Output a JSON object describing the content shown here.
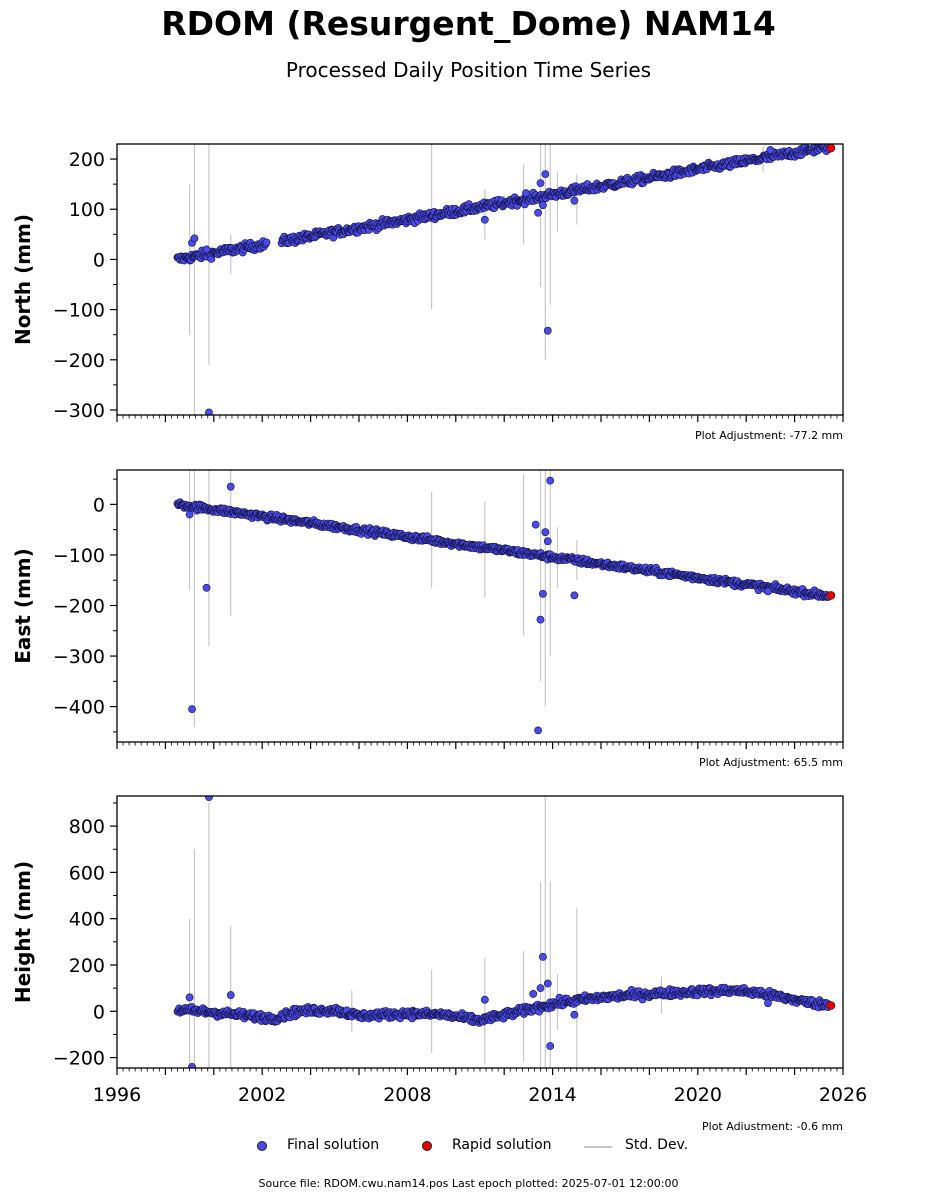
{
  "title": "RDOM (Resurgent_Dome) NAM14",
  "subtitle": "Processed Daily Position Time Series",
  "legend": {
    "final": "Final solution",
    "rapid": "Rapid solution",
    "std": "Std. Dev."
  },
  "colors": {
    "final": "#4b4bea",
    "rapid": "#e60000",
    "std": "#c8c8c8"
  },
  "footer": "Source file: RDOM.cwu.nam14.pos  Last epoch plotted: 2025-07-01 12:00:00",
  "chart_data": [
    {
      "type": "scatter",
      "ylabel": "North (mm)",
      "adjustment": "Plot Adjustment: -77.2 mm",
      "xlim": [
        1996,
        2026
      ],
      "ylim": [
        -310,
        230
      ],
      "yticks": [
        -300,
        -200,
        -100,
        0,
        100,
        200
      ],
      "yticklabels": [
        "−300",
        "−200",
        "−100",
        "0",
        "100",
        "200"
      ],
      "trend": [
        [
          1998.5,
          0
        ],
        [
          2025.5,
          225
        ]
      ],
      "scatter_noise": 4,
      "outliers": [
        [
          1999.1,
          33
        ],
        [
          1999.2,
          42
        ],
        [
          1999.7,
          20
        ],
        [
          1999.8,
          -305
        ],
        [
          2011.2,
          79
        ],
        [
          2012.9,
          132
        ],
        [
          2013.4,
          93
        ],
        [
          2013.5,
          152
        ],
        [
          2013.6,
          108
        ],
        [
          2013.7,
          170
        ],
        [
          2013.8,
          -142
        ],
        [
          2014.9,
          117
        ],
        [
          2023.0,
          218
        ]
      ],
      "errorbars": [
        [
          1999.0,
          0,
          150
        ],
        [
          1999.2,
          0,
          310
        ],
        [
          1999.8,
          10,
          220
        ],
        [
          2000.7,
          10,
          40
        ],
        [
          2009.0,
          80,
          180
        ],
        [
          2011.2,
          90,
          50
        ],
        [
          2012.8,
          110,
          80
        ],
        [
          2013.5,
          115,
          170
        ],
        [
          2013.7,
          100,
          300
        ],
        [
          2013.9,
          110,
          200
        ],
        [
          2014.2,
          115,
          60
        ],
        [
          2015.0,
          120,
          50
        ],
        [
          2022.7,
          200,
          25
        ]
      ],
      "rapid": [
        [
          2025.5,
          222
        ]
      ]
    },
    {
      "type": "scatter",
      "ylabel": "East (mm)",
      "adjustment": "Plot Adjustment: 65.5 mm",
      "xlim": [
        1996,
        2026
      ],
      "ylim": [
        -470,
        68
      ],
      "yticks": [
        -400,
        -300,
        -200,
        -100,
        0
      ],
      "yticklabels": [
        "−400",
        "−300",
        "−200",
        "−100",
        "0"
      ],
      "trend": [
        [
          1998.5,
          0
        ],
        [
          2025.5,
          -182
        ]
      ],
      "scatter_noise": 3,
      "outliers": [
        [
          1999.0,
          -20
        ],
        [
          1999.1,
          -405
        ],
        [
          1999.7,
          -165
        ],
        [
          2000.7,
          35
        ],
        [
          2013.3,
          -40
        ],
        [
          2013.4,
          -447
        ],
        [
          2013.5,
          -228
        ],
        [
          2013.6,
          -177
        ],
        [
          2013.7,
          -55
        ],
        [
          2013.8,
          -73
        ],
        [
          2013.9,
          47
        ],
        [
          2014.9,
          -180
        ],
        [
          2022.9,
          -172
        ]
      ],
      "errorbars": [
        [
          1999.0,
          -10,
          160
        ],
        [
          1999.2,
          -20,
          420
        ],
        [
          1999.8,
          -50,
          230
        ],
        [
          2000.7,
          -10,
          210
        ],
        [
          2009.0,
          -70,
          95
        ],
        [
          2011.2,
          -90,
          95
        ],
        [
          2012.8,
          -100,
          160
        ],
        [
          2013.5,
          -100,
          250
        ],
        [
          2013.7,
          -100,
          300
        ],
        [
          2013.9,
          -100,
          200
        ],
        [
          2014.2,
          -105,
          60
        ],
        [
          2015.0,
          -110,
          40
        ]
      ],
      "rapid": [
        [
          2025.5,
          -180
        ]
      ]
    },
    {
      "type": "scatter",
      "ylabel": "Height (mm)",
      "adjustment": "Plot Adjustment: -0.6 mm",
      "xlim": [
        1996,
        2026
      ],
      "ylim": [
        -245,
        930
      ],
      "yticks": [
        -200,
        0,
        200,
        400,
        600,
        800
      ],
      "yticklabels": [
        "−200",
        "0",
        "200",
        "400",
        "600",
        "800"
      ],
      "xticks": [
        1996,
        2002,
        2008,
        2014,
        2020,
        2026
      ],
      "xticklabels": [
        "1996",
        "2002",
        "2008",
        "2014",
        "2020",
        "2026"
      ],
      "profile": [
        [
          1998.5,
          5
        ],
        [
          1999.5,
          0
        ],
        [
          2001.0,
          -15
        ],
        [
          2002.5,
          -30
        ],
        [
          2003.5,
          0
        ],
        [
          2005.0,
          5
        ],
        [
          2006.0,
          -20
        ],
        [
          2008.0,
          -10
        ],
        [
          2009.5,
          -15
        ],
        [
          2011.0,
          -40
        ],
        [
          2012.5,
          -5
        ],
        [
          2013.5,
          20
        ],
        [
          2014.5,
          40
        ],
        [
          2016.0,
          60
        ],
        [
          2018.0,
          75
        ],
        [
          2020.0,
          85
        ],
        [
          2021.5,
          90
        ],
        [
          2022.5,
          80
        ],
        [
          2023.5,
          60
        ],
        [
          2024.5,
          40
        ],
        [
          2025.5,
          25
        ]
      ],
      "scatter_noise": 8,
      "outliers": [
        [
          1999.0,
          60
        ],
        [
          1999.1,
          -240
        ],
        [
          1999.8,
          925
        ],
        [
          2000.7,
          70
        ],
        [
          2011.2,
          50
        ],
        [
          2013.2,
          75
        ],
        [
          2013.5,
          100
        ],
        [
          2013.6,
          235
        ],
        [
          2013.8,
          120
        ],
        [
          2013.9,
          -150
        ],
        [
          2014.9,
          -15
        ],
        [
          2022.9,
          35
        ]
      ],
      "errorbars": [
        [
          1999.0,
          0,
          400
        ],
        [
          1999.2,
          0,
          700
        ],
        [
          1999.8,
          0,
          900
        ],
        [
          2000.7,
          0,
          370
        ],
        [
          2005.7,
          0,
          90
        ],
        [
          2009.0,
          0,
          180
        ],
        [
          2011.2,
          0,
          230
        ],
        [
          2012.8,
          20,
          240
        ],
        [
          2013.5,
          60,
          500
        ],
        [
          2013.7,
          80,
          900
        ],
        [
          2013.9,
          60,
          500
        ],
        [
          2014.2,
          40,
          120
        ],
        [
          2015.0,
          45,
          400
        ],
        [
          2018.5,
          70,
          80
        ]
      ],
      "rapid": [
        [
          2025.5,
          25
        ]
      ]
    }
  ]
}
